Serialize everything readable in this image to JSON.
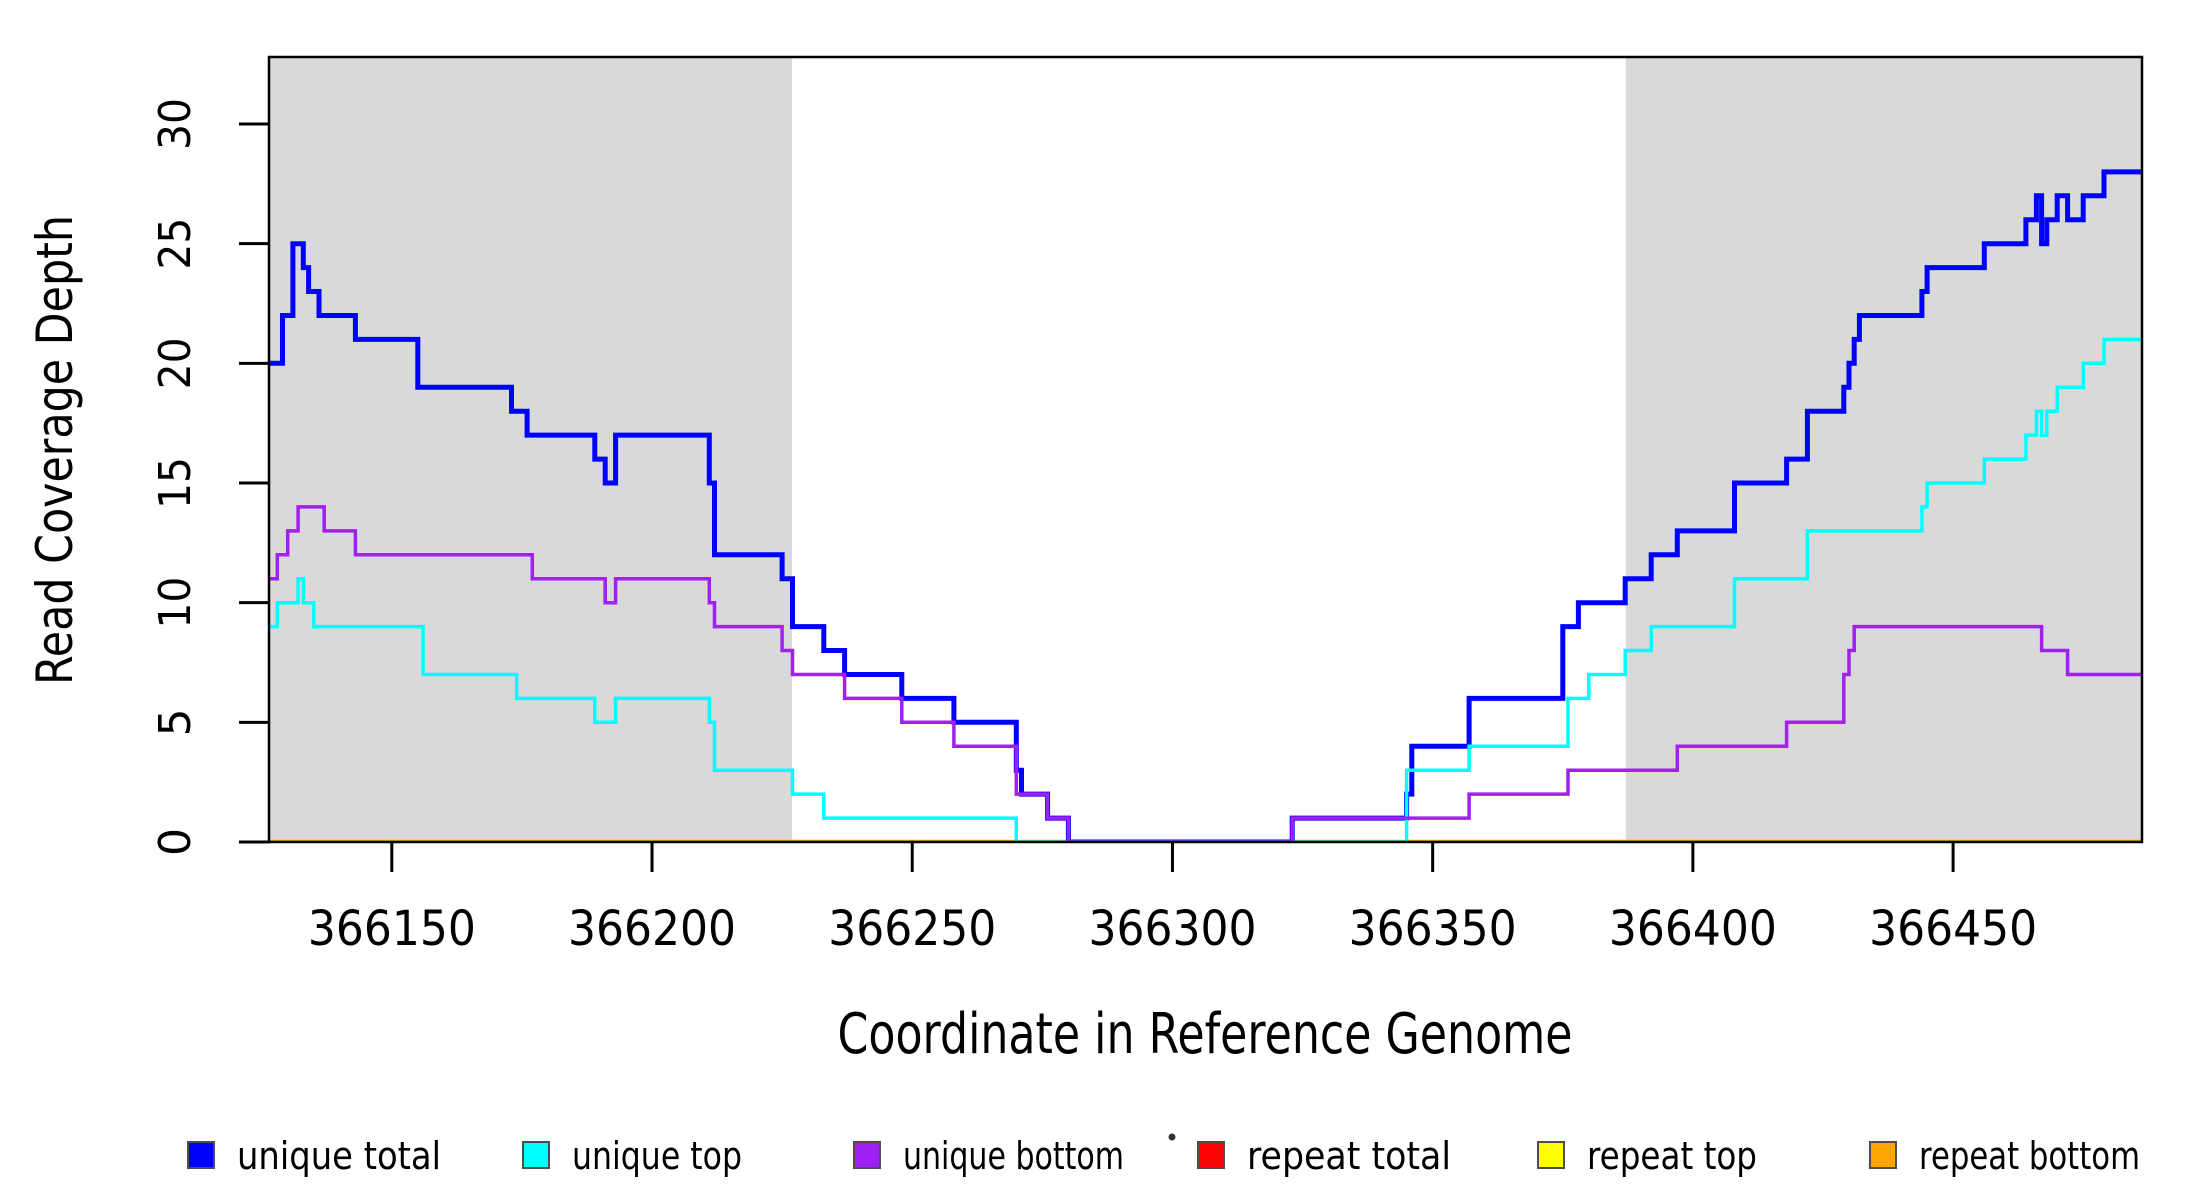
{
  "figure": {
    "x_axis_title": "Coordinate in Reference Genome",
    "y_axis_title": "Read Coverage Depth"
  },
  "chart_data": {
    "type": "line",
    "step_mode": "step-after",
    "title": "",
    "xlabel": "Coordinate in Reference Genome",
    "ylabel": "Read Coverage Depth",
    "xlim": [
      366126.4,
      366486.3
    ],
    "ylim": [
      0,
      32.8
    ],
    "grid": false,
    "legend_position": "bottom-horizontal",
    "x_ticks": [
      366150,
      366200,
      366250,
      366300,
      366350,
      366400,
      366450
    ],
    "y_ticks": [
      0,
      5,
      10,
      15,
      20,
      25,
      30
    ],
    "background_color": "#FFFFFF",
    "plot_border_color": "#000000",
    "shaded_bands": [
      {
        "x0": 366126.4,
        "x1": 366226.9,
        "color": "#D9D9D9"
      },
      {
        "x0": 366387.1,
        "x1": 366486.3,
        "color": "#D9D9D9"
      }
    ],
    "draw_order": [
      "repeat-total",
      "repeat-top",
      "repeat-bottom",
      "unique-total",
      "unique-top",
      "unique-bottom"
    ],
    "series": [
      {
        "id": "unique-total",
        "name": "unique total",
        "color": "#0000FF",
        "width": 5,
        "points": [
          [
            366126.4,
            20
          ],
          [
            366129,
            22
          ],
          [
            366131,
            25
          ],
          [
            366133,
            24
          ],
          [
            366134,
            23
          ],
          [
            366136,
            22
          ],
          [
            366143,
            21
          ],
          [
            366155,
            19
          ],
          [
            366173,
            18
          ],
          [
            366176,
            17
          ],
          [
            366189,
            16
          ],
          [
            366191,
            15
          ],
          [
            366193,
            17
          ],
          [
            366211,
            15
          ],
          [
            366212,
            12
          ],
          [
            366225,
            11
          ],
          [
            366227,
            9
          ],
          [
            366233,
            8
          ],
          [
            366237,
            7
          ],
          [
            366248,
            6
          ],
          [
            366258,
            5
          ],
          [
            366270,
            3
          ],
          [
            366271,
            2
          ],
          [
            366276,
            1
          ],
          [
            366280,
            0
          ],
          [
            366323,
            1
          ],
          [
            366345,
            2
          ],
          [
            366346,
            4
          ],
          [
            366357,
            6
          ],
          [
            366375,
            9
          ],
          [
            366378,
            10
          ],
          [
            366387,
            11
          ],
          [
            366392,
            12
          ],
          [
            366397,
            13
          ],
          [
            366408,
            15
          ],
          [
            366418,
            16
          ],
          [
            366422,
            18
          ],
          [
            366429,
            19
          ],
          [
            366430,
            20
          ],
          [
            366431,
            21
          ],
          [
            366432,
            22
          ],
          [
            366444,
            23
          ],
          [
            366445,
            24
          ],
          [
            366456,
            25
          ],
          [
            366464,
            26
          ],
          [
            366466,
            27
          ],
          [
            366467,
            25
          ],
          [
            366468,
            26
          ],
          [
            366470,
            27
          ],
          [
            366472,
            26
          ],
          [
            366475,
            27
          ],
          [
            366479,
            28
          ],
          [
            366486.3,
            28
          ]
        ]
      },
      {
        "id": "unique-top",
        "name": "unique top",
        "color": "#00FFFF",
        "width": 3.5,
        "points": [
          [
            366126.4,
            9
          ],
          [
            366128,
            10
          ],
          [
            366132,
            11
          ],
          [
            366133,
            10
          ],
          [
            366135,
            9
          ],
          [
            366156,
            7
          ],
          [
            366174,
            6
          ],
          [
            366189,
            5
          ],
          [
            366193,
            6
          ],
          [
            366211,
            5
          ],
          [
            366212,
            3
          ],
          [
            366227,
            2
          ],
          [
            366233,
            1
          ],
          [
            366270,
            0
          ],
          [
            366345,
            3
          ],
          [
            366357,
            4
          ],
          [
            366376,
            6
          ],
          [
            366380,
            7
          ],
          [
            366387,
            8
          ],
          [
            366392,
            9
          ],
          [
            366408,
            11
          ],
          [
            366422,
            13
          ],
          [
            366444,
            14
          ],
          [
            366445,
            15
          ],
          [
            366456,
            16
          ],
          [
            366464,
            17
          ],
          [
            366466,
            18
          ],
          [
            366467,
            17
          ],
          [
            366468,
            18
          ],
          [
            366470,
            19
          ],
          [
            366475,
            20
          ],
          [
            366479,
            21
          ],
          [
            366486.3,
            21
          ]
        ]
      },
      {
        "id": "unique-bottom",
        "name": "unique bottom",
        "color": "#A020F0",
        "width": 3.5,
        "points": [
          [
            366126.4,
            11
          ],
          [
            366128,
            12
          ],
          [
            366130,
            13
          ],
          [
            366132,
            14
          ],
          [
            366137,
            13
          ],
          [
            366143,
            12
          ],
          [
            366177,
            11
          ],
          [
            366191,
            10
          ],
          [
            366193,
            11
          ],
          [
            366211,
            10
          ],
          [
            366212,
            9
          ],
          [
            366225,
            8
          ],
          [
            366227,
            7
          ],
          [
            366237,
            6
          ],
          [
            366248,
            5
          ],
          [
            366258,
            4
          ],
          [
            366270,
            2
          ],
          [
            366276,
            1
          ],
          [
            366280,
            0
          ],
          [
            366323,
            1
          ],
          [
            366357,
            2
          ],
          [
            366376,
            3
          ],
          [
            366397,
            4
          ],
          [
            366418,
            5
          ],
          [
            366429,
            7
          ],
          [
            366430,
            8
          ],
          [
            366431,
            9
          ],
          [
            366467,
            8
          ],
          [
            366472,
            7
          ],
          [
            366486.3,
            7
          ]
        ]
      },
      {
        "id": "repeat-total",
        "name": "repeat total",
        "color": "#FF0000",
        "width": 3,
        "points": [
          [
            366126.4,
            0
          ],
          [
            366486.3,
            0
          ]
        ]
      },
      {
        "id": "repeat-top",
        "name": "repeat top",
        "color": "#FFFF00",
        "width": 3,
        "points": [
          [
            366126.4,
            0
          ],
          [
            366486.3,
            0
          ]
        ]
      },
      {
        "id": "repeat-bottom",
        "name": "repeat bottom",
        "color": "#FFA500",
        "width": 4.5,
        "points": [
          [
            366126.4,
            0
          ],
          [
            366486.3,
            0
          ]
        ]
      }
    ]
  },
  "legend": {
    "items": [
      {
        "label": "unique total",
        "color": "#0000FF"
      },
      {
        "label": "unique top",
        "color": "#00FFFF"
      },
      {
        "label": "unique bottom",
        "color": "#A020F0"
      },
      {
        "label": "repeat total",
        "color": "#FF0000"
      },
      {
        "label": "repeat top",
        "color": "#FFFF00"
      },
      {
        "label": "repeat bottom",
        "color": "#FFA500"
      }
    ],
    "swatch_border_color": "#4D4D4D",
    "has_stray_dot": true
  }
}
